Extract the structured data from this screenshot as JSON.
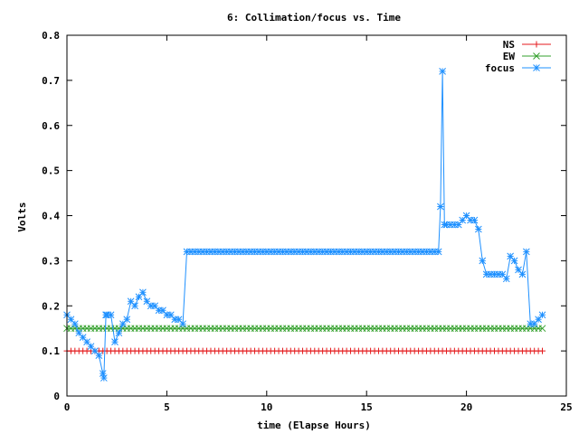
{
  "chart_data": {
    "type": "line",
    "title": "6: Collimation/focus vs. Time",
    "xlabel": "time (Elapse Hours)",
    "ylabel": "Volts",
    "xlim": [
      0,
      25
    ],
    "ylim": [
      0,
      0.8
    ],
    "xticks": [
      "0",
      "5",
      "10",
      "15",
      "20",
      "25"
    ],
    "yticks": [
      "0",
      "0.1",
      "0.2",
      "0.3",
      "0.4",
      "0.5",
      "0.6",
      "0.7",
      "0.8"
    ],
    "legend_position": "top-right",
    "series": [
      {
        "name": "NS",
        "color": "#e41a1c",
        "marker": "plus",
        "x": [
          0,
          0.2,
          0.4,
          0.6,
          0.8,
          1,
          1.2,
          1.4,
          1.6,
          1.8,
          2,
          2.2,
          2.4,
          2.6,
          2.8,
          3,
          3.2,
          3.4,
          3.6,
          3.8,
          4,
          4.2,
          4.4,
          4.6,
          4.8,
          5,
          5.2,
          5.4,
          5.6,
          5.8,
          6,
          6.2,
          6.4,
          6.6,
          6.8,
          7,
          7.2,
          7.4,
          7.6,
          7.8,
          8,
          8.2,
          8.4,
          8.6,
          8.8,
          9,
          9.2,
          9.4,
          9.6,
          9.8,
          10,
          10.2,
          10.4,
          10.6,
          10.8,
          11,
          11.2,
          11.4,
          11.6,
          11.8,
          12,
          12.2,
          12.4,
          12.6,
          12.8,
          13,
          13.2,
          13.4,
          13.6,
          13.8,
          14,
          14.2,
          14.4,
          14.6,
          14.8,
          15,
          15.2,
          15.4,
          15.6,
          15.8,
          16,
          16.2,
          16.4,
          16.6,
          16.8,
          17,
          17.2,
          17.4,
          17.6,
          17.8,
          18,
          18.2,
          18.4,
          18.6,
          18.8,
          19,
          19.2,
          19.4,
          19.6,
          19.8,
          20,
          20.2,
          20.4,
          20.6,
          20.8,
          21,
          21.2,
          21.4,
          21.6,
          21.8,
          22,
          22.2,
          22.4,
          22.6,
          22.8,
          23,
          23.2,
          23.4,
          23.6,
          23.8
        ],
        "y": [
          0.1,
          0.1,
          0.1,
          0.1,
          0.1,
          0.1,
          0.1,
          0.1,
          0.1,
          0.1,
          0.1,
          0.1,
          0.1,
          0.1,
          0.1,
          0.1,
          0.1,
          0.1,
          0.1,
          0.1,
          0.1,
          0.1,
          0.1,
          0.1,
          0.1,
          0.1,
          0.1,
          0.1,
          0.1,
          0.1,
          0.1,
          0.1,
          0.1,
          0.1,
          0.1,
          0.1,
          0.1,
          0.1,
          0.1,
          0.1,
          0.1,
          0.1,
          0.1,
          0.1,
          0.1,
          0.1,
          0.1,
          0.1,
          0.1,
          0.1,
          0.1,
          0.1,
          0.1,
          0.1,
          0.1,
          0.1,
          0.1,
          0.1,
          0.1,
          0.1,
          0.1,
          0.1,
          0.1,
          0.1,
          0.1,
          0.1,
          0.1,
          0.1,
          0.1,
          0.1,
          0.1,
          0.1,
          0.1,
          0.1,
          0.1,
          0.1,
          0.1,
          0.1,
          0.1,
          0.1,
          0.1,
          0.1,
          0.1,
          0.1,
          0.1,
          0.1,
          0.1,
          0.1,
          0.1,
          0.1,
          0.1,
          0.1,
          0.1,
          0.1,
          0.1,
          0.1,
          0.1,
          0.1,
          0.1,
          0.1,
          0.1,
          0.1,
          0.1,
          0.1,
          0.1,
          0.1,
          0.1,
          0.1,
          0.1,
          0.1,
          0.1,
          0.1,
          0.1,
          0.1,
          0.1,
          0.1,
          0.1,
          0.1,
          0.1,
          0.1
        ]
      },
      {
        "name": "EW",
        "color": "#33a02c",
        "marker": "cross",
        "x": [
          0,
          0.2,
          0.4,
          0.6,
          0.8,
          1,
          1.2,
          1.4,
          1.6,
          1.8,
          2,
          2.2,
          2.4,
          2.6,
          2.8,
          3,
          3.2,
          3.4,
          3.6,
          3.8,
          4,
          4.2,
          4.4,
          4.6,
          4.8,
          5,
          5.2,
          5.4,
          5.6,
          5.8,
          6,
          6.2,
          6.4,
          6.6,
          6.8,
          7,
          7.2,
          7.4,
          7.6,
          7.8,
          8,
          8.2,
          8.4,
          8.6,
          8.8,
          9,
          9.2,
          9.4,
          9.6,
          9.8,
          10,
          10.2,
          10.4,
          10.6,
          10.8,
          11,
          11.2,
          11.4,
          11.6,
          11.8,
          12,
          12.2,
          12.4,
          12.6,
          12.8,
          13,
          13.2,
          13.4,
          13.6,
          13.8,
          14,
          14.2,
          14.4,
          14.6,
          14.8,
          15,
          15.2,
          15.4,
          15.6,
          15.8,
          16,
          16.2,
          16.4,
          16.6,
          16.8,
          17,
          17.2,
          17.4,
          17.6,
          17.8,
          18,
          18.2,
          18.4,
          18.6,
          18.8,
          19,
          19.2,
          19.4,
          19.6,
          19.8,
          20,
          20.2,
          20.4,
          20.6,
          20.8,
          21,
          21.2,
          21.4,
          21.6,
          21.8,
          22,
          22.2,
          22.4,
          22.6,
          22.8,
          23,
          23.2,
          23.4,
          23.6,
          23.8
        ],
        "y": [
          0.15,
          0.15,
          0.15,
          0.15,
          0.15,
          0.15,
          0.15,
          0.15,
          0.15,
          0.15,
          0.15,
          0.15,
          0.15,
          0.15,
          0.15,
          0.15,
          0.15,
          0.15,
          0.15,
          0.15,
          0.15,
          0.15,
          0.15,
          0.15,
          0.15,
          0.15,
          0.15,
          0.15,
          0.15,
          0.15,
          0.15,
          0.15,
          0.15,
          0.15,
          0.15,
          0.15,
          0.15,
          0.15,
          0.15,
          0.15,
          0.15,
          0.15,
          0.15,
          0.15,
          0.15,
          0.15,
          0.15,
          0.15,
          0.15,
          0.15,
          0.15,
          0.15,
          0.15,
          0.15,
          0.15,
          0.15,
          0.15,
          0.15,
          0.15,
          0.15,
          0.15,
          0.15,
          0.15,
          0.15,
          0.15,
          0.15,
          0.15,
          0.15,
          0.15,
          0.15,
          0.15,
          0.15,
          0.15,
          0.15,
          0.15,
          0.15,
          0.15,
          0.15,
          0.15,
          0.15,
          0.15,
          0.15,
          0.15,
          0.15,
          0.15,
          0.15,
          0.15,
          0.15,
          0.15,
          0.15,
          0.15,
          0.15,
          0.15,
          0.15,
          0.15,
          0.15,
          0.15,
          0.15,
          0.15,
          0.15,
          0.15,
          0.15,
          0.15,
          0.15,
          0.15,
          0.15,
          0.15,
          0.15,
          0.15,
          0.15,
          0.15,
          0.15,
          0.15,
          0.15,
          0.15,
          0.15,
          0.15,
          0.15,
          0.15,
          0.15
        ]
      },
      {
        "name": "focus",
        "color": "#1e90ff",
        "marker": "star",
        "x": [
          0,
          0.2,
          0.4,
          0.6,
          0.8,
          1,
          1.2,
          1.4,
          1.6,
          1.8,
          1.85,
          1.95,
          2.0,
          2.2,
          2.4,
          2.6,
          2.8,
          3,
          3.2,
          3.4,
          3.6,
          3.8,
          4,
          4.2,
          4.4,
          4.6,
          4.8,
          5,
          5.2,
          5.4,
          5.6,
          5.8,
          6,
          6.2,
          6.4,
          6.6,
          6.8,
          7,
          7.2,
          7.4,
          7.6,
          7.8,
          8,
          8.2,
          8.4,
          8.6,
          8.8,
          9,
          9.2,
          9.4,
          9.6,
          9.8,
          10,
          10.2,
          10.4,
          10.6,
          10.8,
          11,
          11.2,
          11.4,
          11.6,
          11.8,
          12,
          12.2,
          12.4,
          12.6,
          12.8,
          13,
          13.2,
          13.4,
          13.6,
          13.8,
          14,
          14.2,
          14.4,
          14.6,
          14.8,
          15,
          15.2,
          15.4,
          15.6,
          15.8,
          16,
          16.2,
          16.4,
          16.6,
          16.8,
          17,
          17.2,
          17.4,
          17.6,
          17.8,
          18,
          18.2,
          18.4,
          18.6,
          18.7,
          18.8,
          18.9,
          19,
          19.2,
          19.4,
          19.6,
          19.8,
          20,
          20.2,
          20.4,
          20.6,
          20.8,
          21,
          21.2,
          21.4,
          21.6,
          21.8,
          22,
          22.2,
          22.4,
          22.6,
          22.8,
          23,
          23.2,
          23.4,
          23.6,
          23.8
        ],
        "y": [
          0.18,
          0.17,
          0.16,
          0.14,
          0.13,
          0.12,
          0.11,
          0.1,
          0.09,
          0.05,
          0.04,
          0.18,
          0.18,
          0.18,
          0.12,
          0.14,
          0.16,
          0.17,
          0.21,
          0.2,
          0.22,
          0.23,
          0.21,
          0.2,
          0.2,
          0.19,
          0.19,
          0.18,
          0.18,
          0.17,
          0.17,
          0.16,
          0.32,
          0.32,
          0.32,
          0.32,
          0.32,
          0.32,
          0.32,
          0.32,
          0.32,
          0.32,
          0.32,
          0.32,
          0.32,
          0.32,
          0.32,
          0.32,
          0.32,
          0.32,
          0.32,
          0.32,
          0.32,
          0.32,
          0.32,
          0.32,
          0.32,
          0.32,
          0.32,
          0.32,
          0.32,
          0.32,
          0.32,
          0.32,
          0.32,
          0.32,
          0.32,
          0.32,
          0.32,
          0.32,
          0.32,
          0.32,
          0.32,
          0.32,
          0.32,
          0.32,
          0.32,
          0.32,
          0.32,
          0.32,
          0.32,
          0.32,
          0.32,
          0.32,
          0.32,
          0.32,
          0.32,
          0.32,
          0.32,
          0.32,
          0.32,
          0.32,
          0.32,
          0.32,
          0.32,
          0.32,
          0.42,
          0.72,
          0.38,
          0.38,
          0.38,
          0.38,
          0.38,
          0.39,
          0.4,
          0.39,
          0.39,
          0.37,
          0.3,
          0.27,
          0.27,
          0.27,
          0.27,
          0.27,
          0.26,
          0.31,
          0.3,
          0.28,
          0.27,
          0.32,
          0.16,
          0.16,
          0.17,
          0.18
        ]
      }
    ]
  }
}
